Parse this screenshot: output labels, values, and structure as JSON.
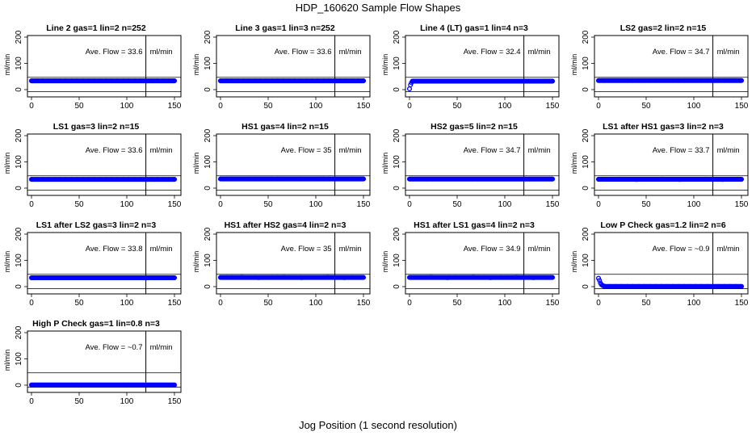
{
  "title": "HDP_160620  Sample Flow Shapes",
  "xlabel": "Jog Position (1 second resolution)",
  "chart_data": {
    "type": "scatter",
    "shared": {
      "xlim": [
        0,
        150
      ],
      "ylim": [
        0,
        200
      ],
      "x_ticks": [
        0,
        50,
        100,
        150
      ],
      "y_ticks": [
        0,
        100,
        200
      ],
      "ylabel": "ml/min",
      "vline_x": 120,
      "ref_lines_y": [
        -8,
        47
      ],
      "point_color": "#0000ff",
      "flow_label": "Ave. Flow =",
      "flow_unit": "ml/min"
    },
    "panels": [
      {
        "title": "Line 2 gas=1 lin=2 n=252",
        "ave_flow": "33.6",
        "base": 33.6,
        "start": [],
        "scatter": 0
      },
      {
        "title": "Line 3 gas=1 lin=3 n=252",
        "ave_flow": "33.6",
        "base": 33.6,
        "start": [],
        "scatter": 0
      },
      {
        "title": "Line 4 (LT) gas=1 lin=4 n=3",
        "ave_flow": "32.4",
        "base": 32.4,
        "start": [
          3,
          18,
          26
        ],
        "scatter": 0
      },
      {
        "title": "LS2 gas=2 lin=2 n=15",
        "ave_flow": "34.7",
        "base": 34.7,
        "start": [],
        "scatter": 0
      },
      {
        "title": "LS1 gas=3 lin=2 n=15",
        "ave_flow": "33.6",
        "base": 33.6,
        "start": [],
        "scatter": 0
      },
      {
        "title": "HS1 gas=4 lin=2 n=15",
        "ave_flow": "35",
        "base": 35,
        "start": [],
        "scatter": 0
      },
      {
        "title": "HS2 gas=5 lin=2 n=15",
        "ave_flow": "34.7",
        "base": 34.7,
        "start": [],
        "scatter": 0
      },
      {
        "title": "LS1 after HS1 gas=3 lin=2 n=3",
        "ave_flow": "33.7",
        "base": 33.7,
        "start": [],
        "scatter": 4
      },
      {
        "title": "LS1 after LS2 gas=3 lin=2 n=3",
        "ave_flow": "33.8",
        "base": 33.8,
        "start": [],
        "scatter": 0
      },
      {
        "title": "HS1 after HS2 gas=4 lin=2 n=3",
        "ave_flow": "35",
        "base": 35,
        "start": [],
        "scatter": 4
      },
      {
        "title": "HS1 after LS1 gas=4 lin=2 n=3",
        "ave_flow": "34.9",
        "base": 34.9,
        "start": [],
        "scatter": 4
      },
      {
        "title": "Low P Check gas=1.2 lin=2 n=6",
        "ave_flow": "~0.9",
        "base": 0.9,
        "start": [
          32,
          24,
          14,
          8,
          5,
          3,
          2
        ],
        "scatter": 0
      },
      {
        "title": "High P Check gas=1 lin=0.8 n=3",
        "ave_flow": "~0.7",
        "base": 0.7,
        "start": [],
        "scatter": 3
      }
    ]
  }
}
